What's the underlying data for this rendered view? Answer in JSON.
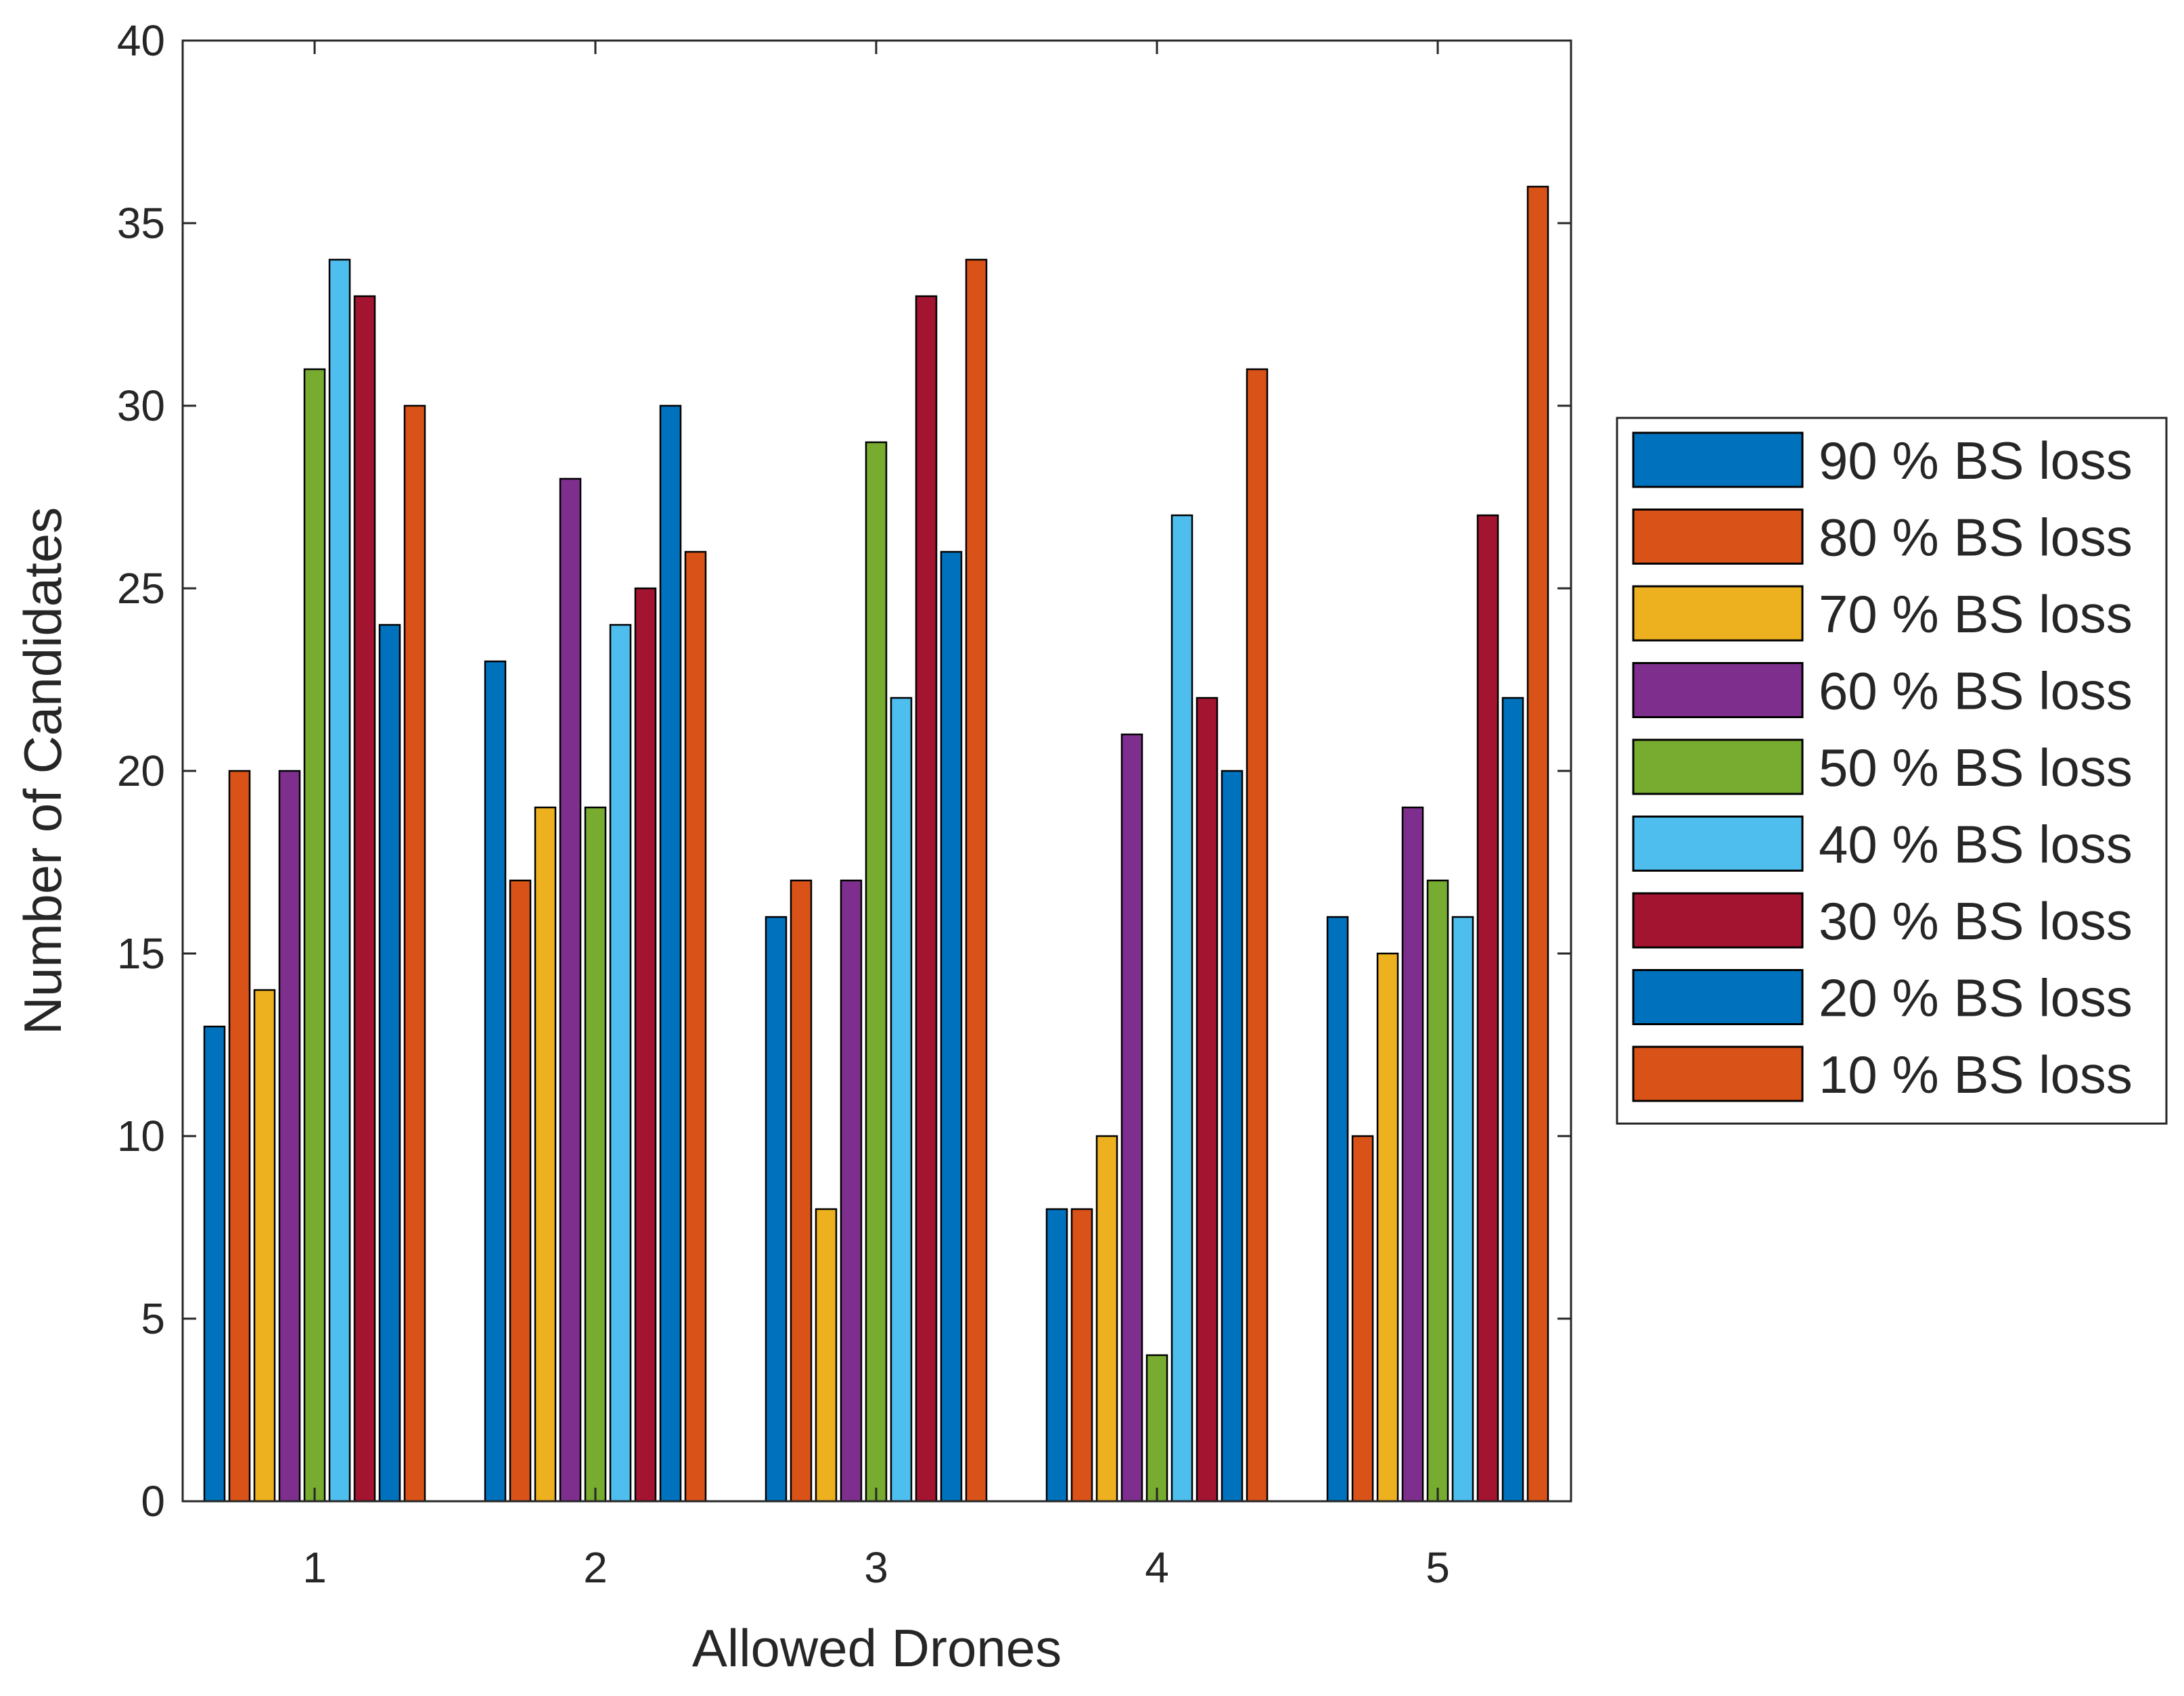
{
  "chart_data": {
    "type": "bar",
    "title": "",
    "xlabel": "Allowed Drones",
    "ylabel": "Number of Candidates",
    "categories": [
      "1",
      "2",
      "3",
      "4",
      "5"
    ],
    "ylim": [
      0,
      40
    ],
    "yticks": [
      "0",
      "5",
      "10",
      "15",
      "20",
      "25",
      "30",
      "35",
      "40"
    ],
    "grid": false,
    "legend_position": "right",
    "series": [
      {
        "name": "90 % BS loss",
        "color": "#0072BD",
        "values": [
          13,
          23,
          16,
          8,
          16
        ]
      },
      {
        "name": "80 % BS loss",
        "color": "#D95319",
        "values": [
          20,
          17,
          17,
          8,
          10
        ]
      },
      {
        "name": "70 % BS loss",
        "color": "#EDB120",
        "values": [
          14,
          19,
          8,
          10,
          15
        ]
      },
      {
        "name": "60 % BS loss",
        "color": "#7E2F8E",
        "values": [
          20,
          28,
          17,
          21,
          19
        ]
      },
      {
        "name": "50 % BS loss",
        "color": "#77AC30",
        "values": [
          31,
          19,
          29,
          4,
          17
        ]
      },
      {
        "name": "40 % BS loss",
        "color": "#4DBEEE",
        "values": [
          34,
          24,
          22,
          27,
          16
        ]
      },
      {
        "name": "30 % BS loss",
        "color": "#A2142F",
        "values": [
          33,
          25,
          33,
          22,
          27
        ]
      },
      {
        "name": "20 % BS loss",
        "color": "#0072BD",
        "values": [
          24,
          30,
          26,
          20,
          22
        ]
      },
      {
        "name": "10 % BS loss",
        "color": "#D95319",
        "values": [
          30,
          26,
          34,
          31,
          36
        ]
      }
    ]
  }
}
